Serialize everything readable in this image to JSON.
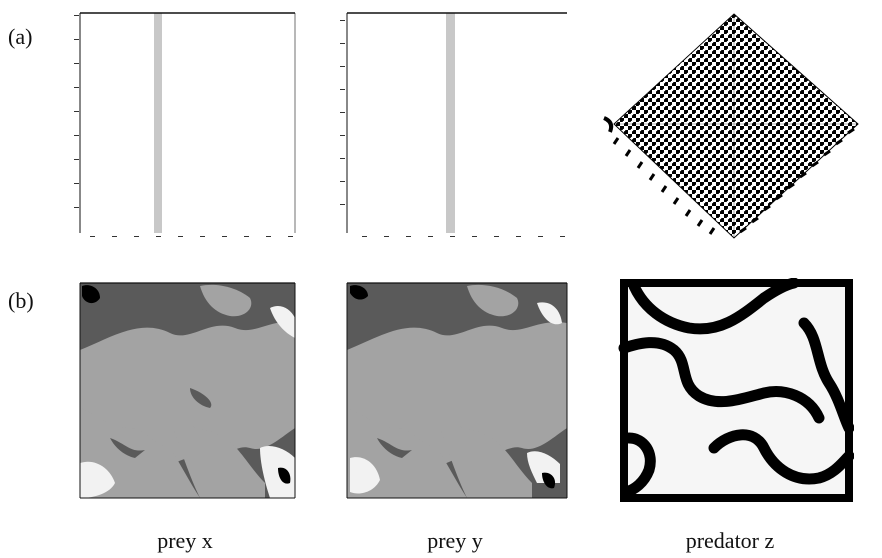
{
  "figure": {
    "row_labels": [
      "(a)",
      "(b)"
    ],
    "captions": [
      "prey x",
      "prey y",
      "predator z"
    ],
    "colors": {
      "background": "#ffffff",
      "axis": "#111111",
      "stripe": "#c8c8c8",
      "light_phase": "#a3a3a3",
      "dark_phase": "#5a5a5a",
      "empty": "#f6f6f6",
      "black": "#000000"
    }
  },
  "panels": {
    "a1": {
      "content": "blank field with single vertical stripe",
      "stripe_position": 0.29
    },
    "a2": {
      "content": "blank field with single vertical stripe",
      "stripe_position": 0.44
    },
    "a3": {
      "content": "diamond-shaped checkerboard pattern"
    },
    "b1": {
      "content": "two-tone prey domain map"
    },
    "b2": {
      "content": "two-tone prey domain map"
    },
    "b3": {
      "content": "predator density with dark bands on white"
    }
  }
}
